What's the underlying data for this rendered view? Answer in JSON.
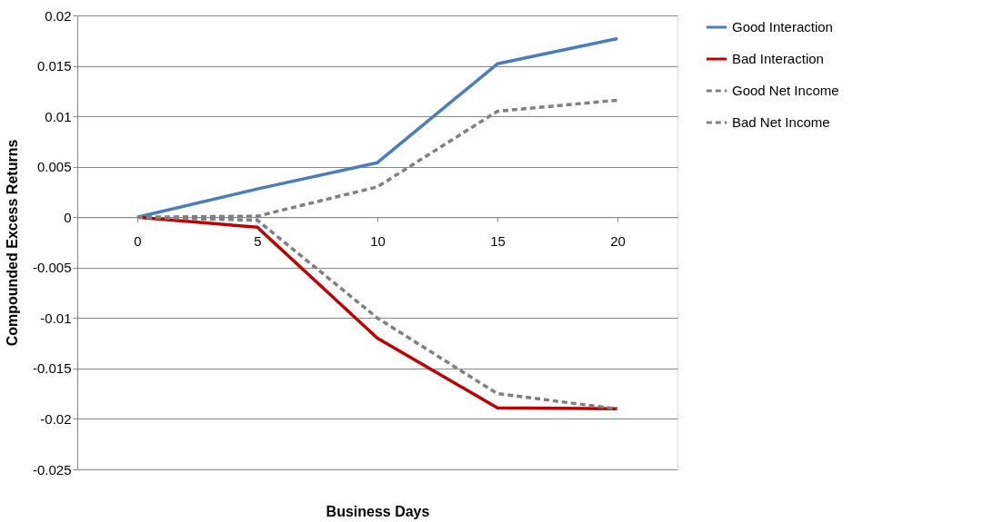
{
  "chart_data": {
    "type": "line",
    "xlabel": "Business Days",
    "ylabel": "Compounded Excess Returns",
    "categories": [
      "0",
      "5",
      "10",
      "15",
      "20"
    ],
    "ylim": [
      -0.025,
      0.02
    ],
    "yticks": [
      -0.025,
      -0.02,
      -0.015,
      -0.01,
      -0.005,
      0,
      0.005,
      0.01,
      0.015,
      0.02
    ],
    "grid": "y",
    "legend": "right",
    "series": [
      {
        "name": "Good Interaction",
        "color": "#4a7ebb",
        "line_style": "solid",
        "values": [
          0,
          0.0028,
          0.0054,
          0.0152,
          0.0177
        ]
      },
      {
        "name": "Bad Interaction",
        "color": "#c00000",
        "line_style": "solid",
        "values": [
          0,
          -0.001,
          -0.012,
          -0.0189,
          -0.019
        ]
      },
      {
        "name": "Good Net Income",
        "color": "#808080",
        "line_style": "dashed",
        "values": [
          0,
          0.0001,
          0.003,
          0.0105,
          0.0116
        ]
      },
      {
        "name": "Bad Net Income",
        "color": "#808080",
        "line_style": "dashed",
        "values": [
          0,
          -0.0003,
          -0.01,
          -0.0175,
          -0.019
        ]
      }
    ]
  }
}
